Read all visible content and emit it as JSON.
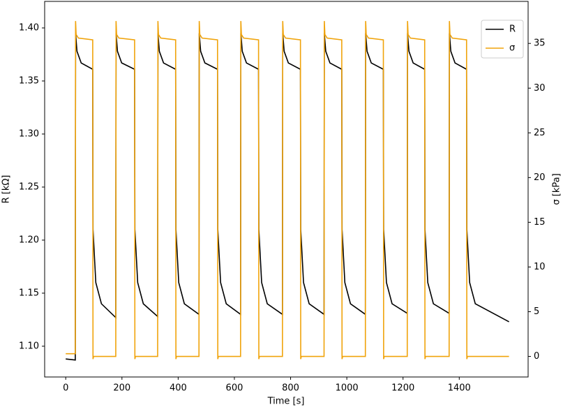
{
  "chart_data": {
    "type": "line",
    "xlabel": "Time [s]",
    "ylabel": "R [kΩ]",
    "y2label": "σ [kPa]",
    "xlim": [
      -75,
      1645
    ],
    "xticks": [
      0,
      200,
      400,
      600,
      800,
      1000,
      1200,
      1400
    ],
    "ylim": [
      1.071,
      1.425
    ],
    "yticks": [
      {
        "value": 1.1,
        "label": "1.10"
      },
      {
        "value": 1.15,
        "label": "1.15"
      },
      {
        "value": 1.2,
        "label": "1.20"
      },
      {
        "value": 1.25,
        "label": "1.25"
      },
      {
        "value": 1.3,
        "label": "1.30"
      },
      {
        "value": 1.35,
        "label": "1.35"
      },
      {
        "value": 1.4,
        "label": "1.40"
      }
    ],
    "y2lim": [
      -2.3,
      39.7
    ],
    "y2ticks": [
      0,
      5,
      10,
      15,
      20,
      25,
      30,
      35
    ],
    "legend": "upper right",
    "series": [
      {
        "name": "R",
        "color": "#000000",
        "axis": "y",
        "x": [
          0,
          34,
          35,
          40,
          55,
          96,
          97,
          107,
          127,
          178,
          179,
          184,
          199,
          245,
          246,
          256,
          276,
          327,
          328,
          333,
          348,
          391,
          392,
          402,
          422,
          474,
          475,
          480,
          495,
          540,
          541,
          551,
          571,
          622,
          623,
          628,
          643,
          686,
          687,
          697,
          717,
          771,
          772,
          777,
          792,
          835,
          836,
          846,
          866,
          919,
          920,
          925,
          940,
          982,
          983,
          993,
          1013,
          1066,
          1067,
          1072,
          1087,
          1130,
          1131,
          1141,
          1161,
          1215,
          1216,
          1221,
          1236,
          1277,
          1278,
          1288,
          1308,
          1364,
          1365,
          1370,
          1385,
          1426,
          1427,
          1437,
          1457,
          1577
        ],
        "values": [
          1.088,
          1.087,
          1.395,
          1.378,
          1.367,
          1.361,
          1.21,
          1.16,
          1.14,
          1.127,
          1.395,
          1.378,
          1.367,
          1.361,
          1.21,
          1.16,
          1.14,
          1.128,
          1.395,
          1.378,
          1.367,
          1.361,
          1.21,
          1.16,
          1.14,
          1.13,
          1.395,
          1.378,
          1.367,
          1.361,
          1.21,
          1.16,
          1.14,
          1.13,
          1.395,
          1.378,
          1.367,
          1.361,
          1.21,
          1.16,
          1.14,
          1.13,
          1.395,
          1.378,
          1.367,
          1.361,
          1.21,
          1.16,
          1.14,
          1.13,
          1.395,
          1.378,
          1.367,
          1.361,
          1.21,
          1.16,
          1.14,
          1.13,
          1.395,
          1.378,
          1.367,
          1.361,
          1.21,
          1.16,
          1.14,
          1.131,
          1.395,
          1.378,
          1.367,
          1.361,
          1.21,
          1.16,
          1.14,
          1.131,
          1.395,
          1.378,
          1.367,
          1.361,
          1.21,
          1.16,
          1.14,
          1.123
        ]
      },
      {
        "name": "σ",
        "color": "#f0a30a",
        "axis": "y2",
        "x": [
          0,
          34,
          35,
          37,
          45,
          96,
          97,
          99,
          178,
          179,
          181,
          189,
          245,
          246,
          248,
          327,
          328,
          330,
          338,
          391,
          392,
          394,
          474,
          475,
          477,
          485,
          540,
          541,
          543,
          622,
          623,
          625,
          633,
          686,
          687,
          689,
          771,
          772,
          774,
          782,
          835,
          836,
          838,
          919,
          920,
          922,
          930,
          982,
          983,
          985,
          1066,
          1067,
          1069,
          1077,
          1130,
          1131,
          1133,
          1215,
          1216,
          1218,
          1226,
          1277,
          1278,
          1280,
          1364,
          1365,
          1367,
          1375,
          1426,
          1427,
          1429,
          1577
        ],
        "values": [
          0.3,
          0.3,
          37.5,
          36,
          35.6,
          35.4,
          -0.3,
          0,
          0,
          37.5,
          36,
          35.6,
          35.4,
          -0.3,
          0,
          0,
          37.5,
          36,
          35.6,
          35.4,
          -0.3,
          0,
          0,
          37.5,
          36,
          35.6,
          35.4,
          -0.3,
          0,
          0,
          37.5,
          36,
          35.6,
          35.4,
          -0.3,
          0,
          0,
          37.5,
          36,
          35.6,
          35.4,
          -0.3,
          0,
          0,
          37.5,
          36,
          35.6,
          35.4,
          -0.3,
          0,
          0,
          37.5,
          36,
          35.6,
          35.4,
          -0.3,
          0,
          0,
          37.5,
          36,
          35.6,
          35.4,
          -0.3,
          0,
          0,
          37.5,
          36,
          35.6,
          35.4,
          -0.3,
          0,
          0
        ]
      }
    ]
  }
}
